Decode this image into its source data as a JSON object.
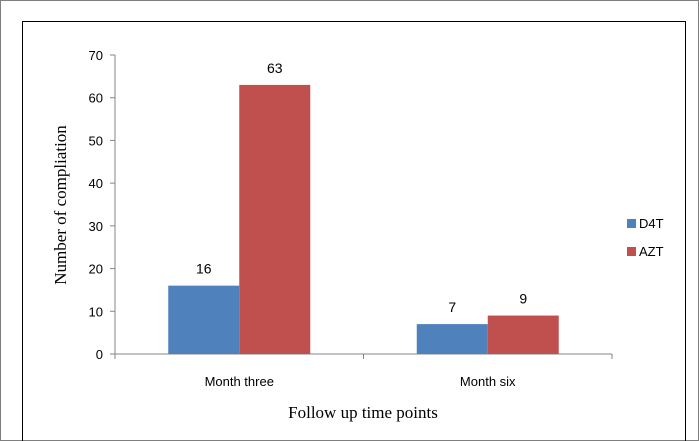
{
  "chart_data": {
    "type": "bar",
    "title": "",
    "xlabel": "Follow up time points",
    "ylabel": "Number of compliation",
    "categories": [
      "Month three",
      "Month six"
    ],
    "series": [
      {
        "name": "D4T",
        "values": [
          16,
          7
        ],
        "color": "#4f81bd"
      },
      {
        "name": "AZT",
        "values": [
          63,
          9
        ],
        "color": "#c0504d"
      }
    ],
    "ylim": [
      0,
      70
    ],
    "yticks": [
      0,
      10,
      20,
      30,
      40,
      50,
      60,
      70
    ],
    "grid": false,
    "legend_position": "right",
    "data_labels": true
  }
}
